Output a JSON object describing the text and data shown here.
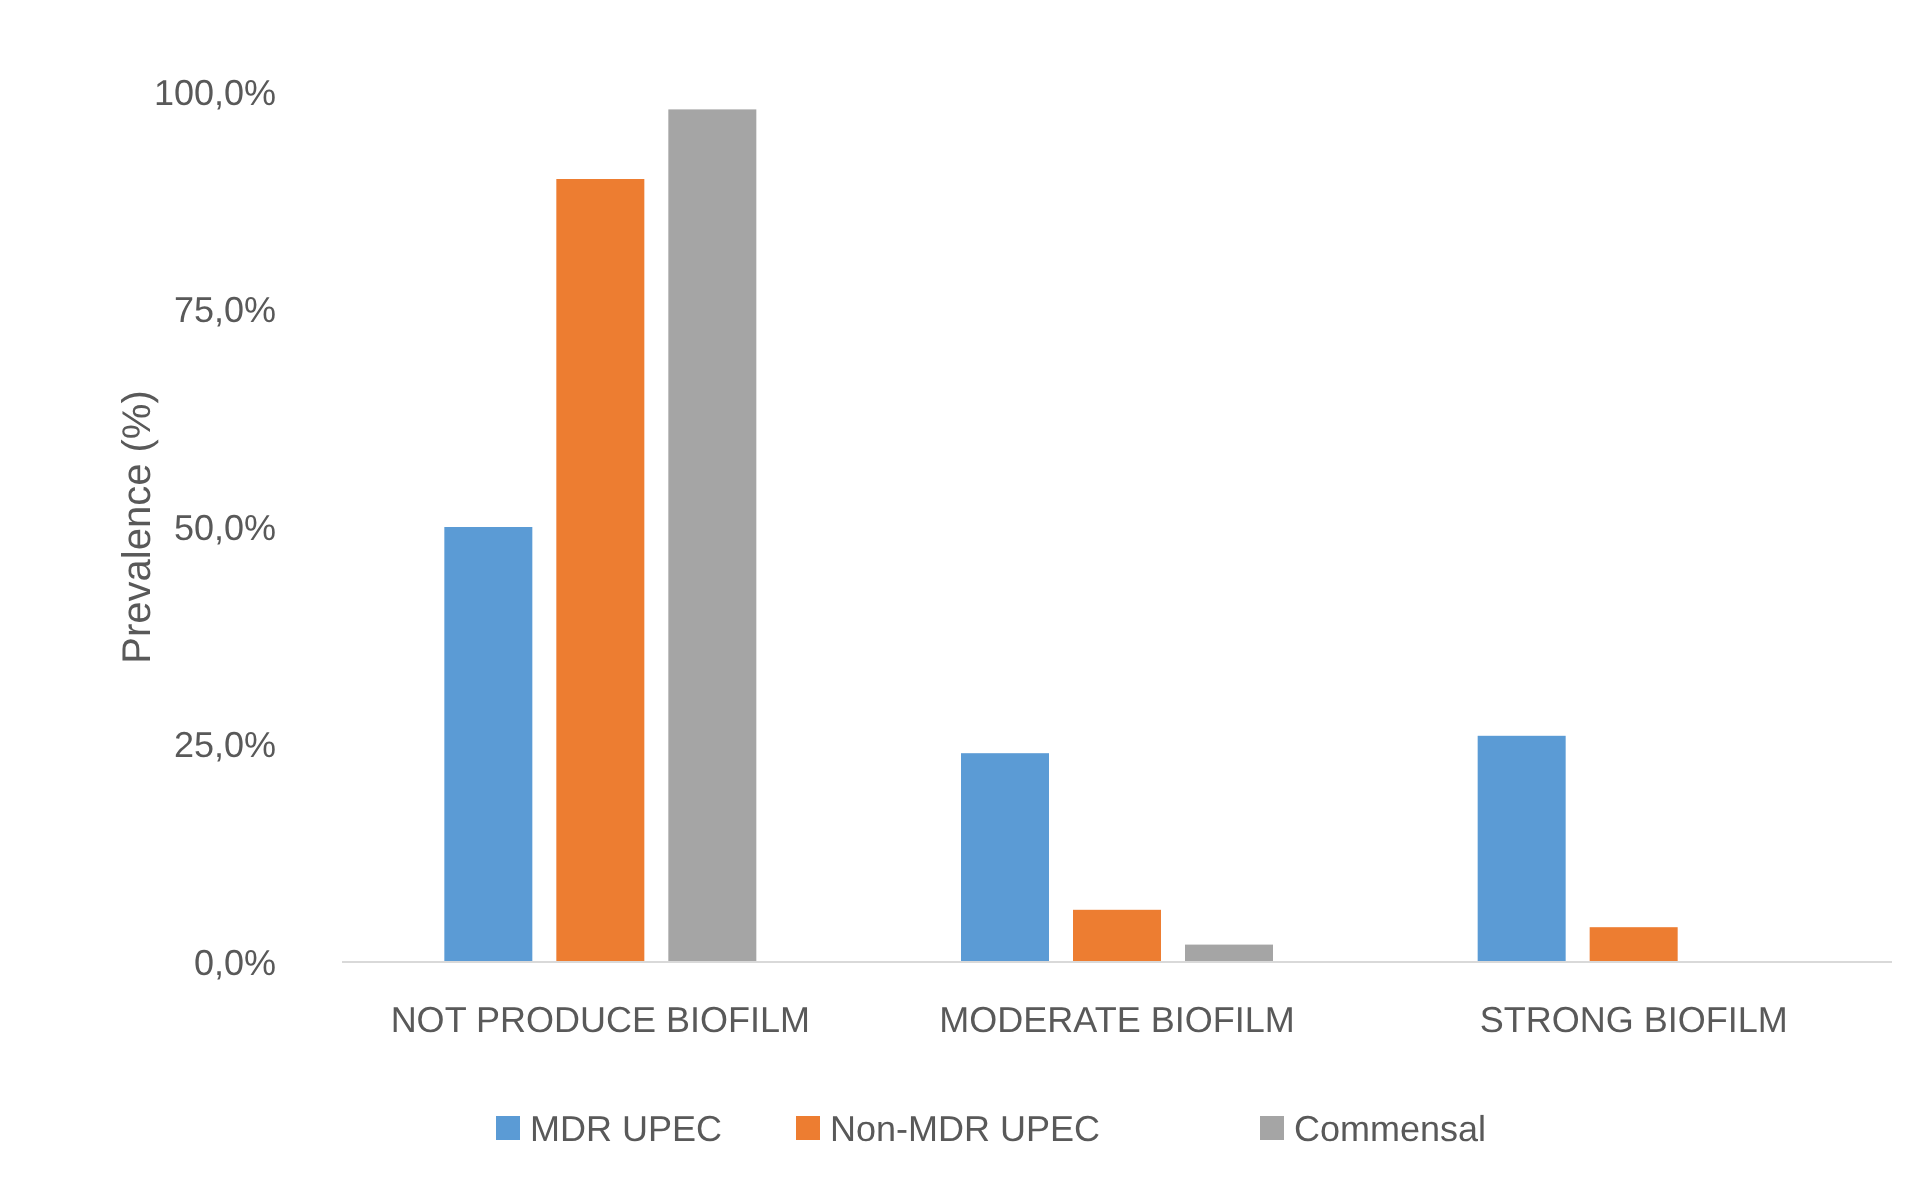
{
  "chart_data": {
    "type": "bar",
    "ylabel": "Prevalence (%)",
    "categories": [
      "NOT PRODUCE BIOFILM",
      "MODERATE BIOFILM",
      "STRONG BIOFILM"
    ],
    "series": [
      {
        "name": "MDR UPEC",
        "color": "#5b9bd5",
        "values": [
          50,
          24,
          26
        ]
      },
      {
        "name": "Non-MDR UPEC",
        "color": "#ed7d31",
        "values": [
          90,
          6,
          4
        ]
      },
      {
        "name": "Commensal",
        "color": "#a5a5a5",
        "values": [
          98,
          2,
          0
        ]
      }
    ],
    "ylim": [
      0,
      100
    ],
    "yticks": [
      {
        "value": 0,
        "label": "0,0%"
      },
      {
        "value": 25,
        "label": "25,0%"
      },
      {
        "value": 50,
        "label": "50,0%"
      },
      {
        "value": 75,
        "label": "75,0%"
      },
      {
        "value": 100,
        "label": "100,0%"
      }
    ],
    "grid": false,
    "legend": "bottom"
  }
}
